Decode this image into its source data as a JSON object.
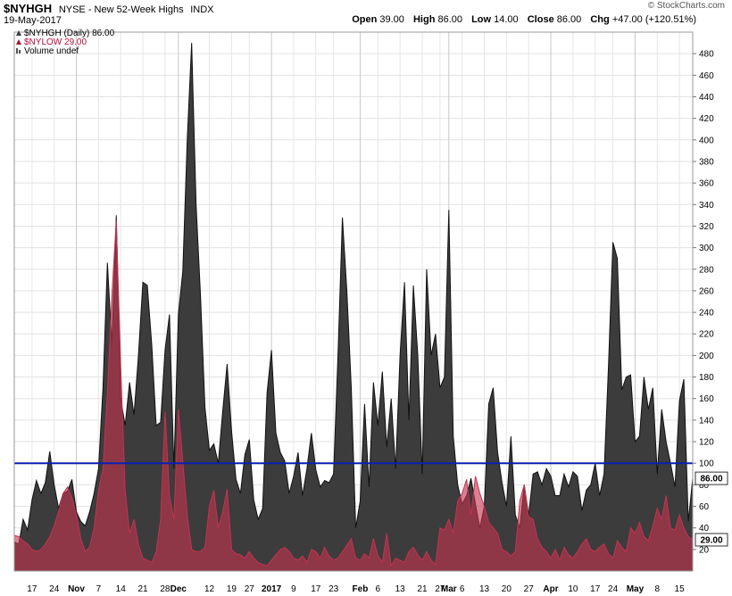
{
  "header": {
    "symbol": "$NYHGH",
    "description": "NYSE - New 52-Week Highs",
    "exchange": "INDX",
    "date": "19-May-2017",
    "brand": "© StockCharts.com",
    "open_label": "Open",
    "open": "39.00",
    "high_label": "High",
    "high": "86.00",
    "low_label": "Low",
    "low": "14.00",
    "close_label": "Close",
    "close": "86.00",
    "chg_label": "Chg",
    "chg": "+47.00 (+120.51%)"
  },
  "legend": {
    "nyhgh": "$NYHGH (Daily) 86.00",
    "nylow": "$NYLOW 29.00",
    "volume": "Volume undef"
  },
  "chart_data": {
    "type": "area",
    "ylim": [
      0,
      500
    ],
    "yticks": [
      20,
      40,
      60,
      80,
      100,
      120,
      140,
      160,
      180,
      200,
      220,
      240,
      260,
      280,
      300,
      320,
      340,
      360,
      380,
      400,
      420,
      440,
      460,
      480
    ],
    "reference_line": 100,
    "last_labels": {
      "nyhgh": "86.00",
      "nylow": "29.00"
    },
    "xtick_labels": [
      {
        "label": "17",
        "i": 4
      },
      {
        "label": "24",
        "i": 9
      },
      {
        "label": "Nov",
        "i": 14,
        "bold": true
      },
      {
        "label": "7",
        "i": 19
      },
      {
        "label": "14",
        "i": 24
      },
      {
        "label": "21",
        "i": 29
      },
      {
        "label": "28",
        "i": 34
      },
      {
        "label": "Dec",
        "i": 37,
        "bold": true
      },
      {
        "label": "12",
        "i": 44
      },
      {
        "label": "19",
        "i": 49
      },
      {
        "label": "27",
        "i": 53
      },
      {
        "label": "2017",
        "i": 58,
        "bold": true
      },
      {
        "label": "9",
        "i": 63
      },
      {
        "label": "17",
        "i": 68
      },
      {
        "label": "23",
        "i": 72
      },
      {
        "label": "Feb",
        "i": 78,
        "bold": true
      },
      {
        "label": "6",
        "i": 82
      },
      {
        "label": "13",
        "i": 87
      },
      {
        "label": "21",
        "i": 92
      },
      {
        "label": "27",
        "i": 96
      },
      {
        "label": "Mar",
        "i": 98,
        "bold": true
      },
      {
        "label": "6",
        "i": 101
      },
      {
        "label": "13",
        "i": 106
      },
      {
        "label": "20",
        "i": 111
      },
      {
        "label": "27",
        "i": 116
      },
      {
        "label": "Apr",
        "i": 121,
        "bold": true
      },
      {
        "label": "10",
        "i": 126
      },
      {
        "label": "17",
        "i": 131
      },
      {
        "label": "24",
        "i": 135
      },
      {
        "label": "May",
        "i": 140,
        "bold": true
      },
      {
        "label": "8",
        "i": 145
      },
      {
        "label": "15",
        "i": 150
      }
    ],
    "series": [
      {
        "name": "$NYHGH",
        "color": "#3c3c3c",
        "values": [
          27,
          25,
          48,
          38,
          66,
          84,
          72,
          82,
          111,
          80,
          58,
          72,
          74,
          85,
          55,
          46,
          42,
          55,
          72,
          95,
          170,
          286,
          210,
          330,
          160,
          135,
          175,
          145,
          200,
          268,
          265,
          210,
          135,
          138,
          205,
          238,
          95,
          238,
          278,
          400,
          490,
          340,
          255,
          152,
          112,
          118,
          100,
          148,
          192,
          130,
          85,
          72,
          108,
          122,
          66,
          48,
          58,
          165,
          205,
          128,
          110,
          102,
          72,
          88,
          110,
          70,
          95,
          128,
          94,
          78,
          84,
          82,
          90,
          200,
          328,
          260,
          170,
          40,
          65,
          155,
          78,
          175,
          135,
          185,
          115,
          160,
          95,
          200,
          268,
          140,
          265,
          200,
          90,
          280,
          200,
          220,
          170,
          180,
          335,
          125,
          80,
          62,
          70,
          86,
          62,
          40,
          60,
          155,
          170,
          110,
          82,
          60,
          125,
          52,
          40,
          80,
          52,
          90,
          92,
          80,
          95,
          88,
          70,
          70,
          90,
          78,
          92,
          88,
          56,
          75,
          80,
          100,
          70,
          90,
          190,
          305,
          290,
          168,
          180,
          182,
          120,
          125,
          180,
          150,
          170,
          90,
          150,
          120,
          100,
          78,
          158,
          178,
          46,
          86
        ],
        "last_value": 86
      },
      {
        "name": "$NYLOW",
        "color": "#9b1b34",
        "values": [
          33,
          32,
          28,
          25,
          20,
          18,
          20,
          25,
          32,
          42,
          55,
          72,
          78,
          68,
          52,
          30,
          18,
          22,
          40,
          75,
          95,
          165,
          255,
          325,
          190,
          75,
          35,
          48,
          25,
          12,
          10,
          8,
          18,
          48,
          148,
          70,
          48,
          150,
          102,
          52,
          20,
          18,
          18,
          22,
          60,
          75,
          40,
          55,
          76,
          20,
          16,
          15,
          12,
          18,
          12,
          8,
          6,
          5,
          10,
          15,
          20,
          22,
          18,
          12,
          10,
          14,
          8,
          20,
          18,
          12,
          22,
          14,
          10,
          12,
          18,
          24,
          30,
          12,
          10,
          16,
          12,
          30,
          14,
          8,
          35,
          5,
          12,
          10,
          8,
          18,
          22,
          15,
          10,
          18,
          10,
          6,
          40,
          38,
          48,
          35,
          65,
          72,
          85,
          52,
          88,
          72,
          60,
          45,
          40,
          35,
          20,
          18,
          14,
          18,
          65,
          80,
          50,
          48,
          30,
          22,
          18,
          12,
          20,
          10,
          22,
          15,
          12,
          18,
          25,
          30,
          20,
          18,
          22,
          25,
          16,
          12,
          28,
          22,
          18,
          40,
          35,
          45,
          32,
          28,
          42,
          58,
          48,
          70,
          40,
          38,
          52,
          40,
          32,
          29
        ],
        "last_value": 29
      }
    ]
  }
}
